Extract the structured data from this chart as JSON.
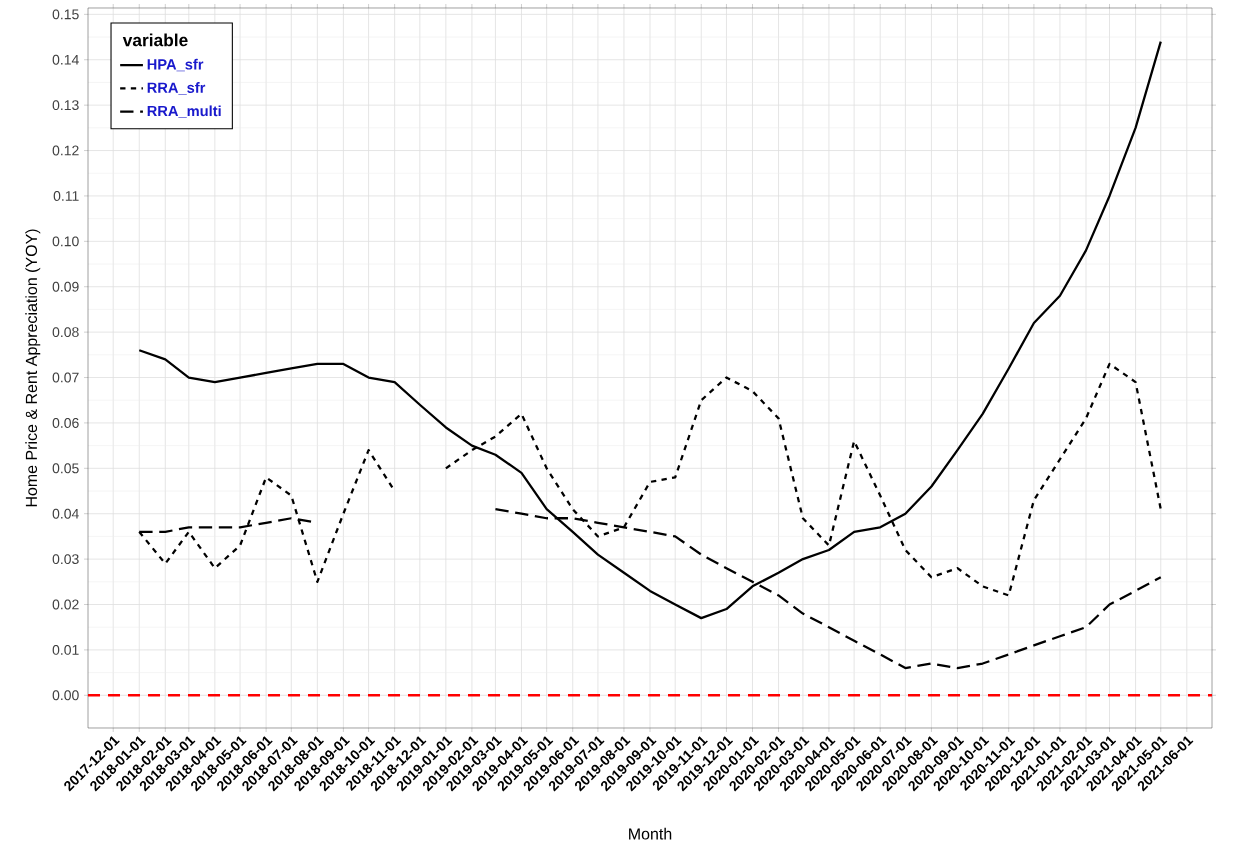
{
  "chart_data": {
    "type": "line",
    "xlabel": "Month",
    "ylabel": "Home Price & Rent Appreciation (YOY)",
    "legend_title": "variable",
    "legend": "top left",
    "grid": true,
    "x": [
      "2018-01-01",
      "2018-02-01",
      "2018-03-01",
      "2018-04-01",
      "2018-05-01",
      "2018-06-01",
      "2018-07-01",
      "2018-08-01",
      "2018-09-01",
      "2018-10-01",
      "2018-11-01",
      "2018-12-01",
      "2019-01-01",
      "2019-02-01",
      "2019-03-01",
      "2019-04-01",
      "2019-05-01",
      "2019-06-01",
      "2019-07-01",
      "2019-08-01",
      "2019-09-01",
      "2019-10-01",
      "2019-11-01",
      "2019-12-01",
      "2020-01-01",
      "2020-02-01",
      "2020-03-01",
      "2020-04-01",
      "2020-05-01",
      "2020-06-01",
      "2020-07-01",
      "2020-08-01",
      "2020-09-01",
      "2020-10-01",
      "2020-11-01",
      "2020-12-01",
      "2021-01-01",
      "2021-02-01",
      "2021-03-01",
      "2021-04-01",
      "2021-05-01"
    ],
    "series": [
      {
        "name": "HPA_sfr",
        "color": "#000000",
        "line_style": "solid",
        "values": [
          0.076,
          0.074,
          0.07,
          0.069,
          0.07,
          0.071,
          0.072,
          0.073,
          0.073,
          0.07,
          0.069,
          0.064,
          0.059,
          0.055,
          0.053,
          0.049,
          0.041,
          0.036,
          0.031,
          0.027,
          0.023,
          0.02,
          0.017,
          0.019,
          0.024,
          0.027,
          0.03,
          0.032,
          0.036,
          0.037,
          0.04,
          0.046,
          0.054,
          0.062,
          0.072,
          0.082,
          0.088,
          0.098,
          0.11,
          0.125,
          0.144
        ]
      },
      {
        "name": "RRA_sfr",
        "color": "#000000",
        "line_style": "dotted",
        "values": [
          0.036,
          0.029,
          0.036,
          0.028,
          0.033,
          0.048,
          0.044,
          0.025,
          0.04,
          0.054,
          0.045,
          null,
          0.05,
          0.054,
          0.057,
          0.062,
          0.05,
          0.041,
          0.035,
          0.037,
          0.047,
          0.048,
          0.065,
          0.07,
          0.067,
          0.061,
          0.039,
          0.033,
          0.056,
          0.044,
          0.032,
          0.026,
          0.028,
          0.024,
          0.022,
          0.043,
          0.052,
          0.061,
          0.073,
          0.069,
          0.041
        ]
      },
      {
        "name": "RRA_multi",
        "color": "#000000",
        "line_style": "dashed",
        "values": [
          0.036,
          0.036,
          0.037,
          0.037,
          0.037,
          0.038,
          0.039,
          0.038,
          null,
          null,
          null,
          null,
          null,
          null,
          0.041,
          0.04,
          0.039,
          0.039,
          0.038,
          0.037,
          0.036,
          0.035,
          0.031,
          0.028,
          0.025,
          0.022,
          0.018,
          0.015,
          0.012,
          0.009,
          0.006,
          0.007,
          0.006,
          0.007,
          0.009,
          0.011,
          0.013,
          0.015,
          0.02,
          0.023,
          0.026
        ]
      }
    ],
    "xlim": [
      "2017-11-01",
      "2021-07-01"
    ],
    "xticks": [
      "2017-12-01",
      "2018-01-01",
      "2018-02-01",
      "2018-03-01",
      "2018-04-01",
      "2018-05-01",
      "2018-06-01",
      "2018-07-01",
      "2018-08-01",
      "2018-09-01",
      "2018-10-01",
      "2018-11-01",
      "2018-12-01",
      "2019-01-01",
      "2019-02-01",
      "2019-03-01",
      "2019-04-01",
      "2019-05-01",
      "2019-06-01",
      "2019-07-01",
      "2019-08-01",
      "2019-09-01",
      "2019-10-01",
      "2019-11-01",
      "2019-12-01",
      "2020-01-01",
      "2020-02-01",
      "2020-03-01",
      "2020-04-01",
      "2020-05-01",
      "2020-06-01",
      "2020-07-01",
      "2020-08-01",
      "2020-09-01",
      "2020-10-01",
      "2020-11-01",
      "2020-12-01",
      "2021-01-01",
      "2021-02-01",
      "2021-03-01",
      "2021-04-01",
      "2021-05-01",
      "2021-06-01"
    ],
    "ylim": [
      -0.0072,
      0.1514
    ],
    "yticks": [
      {
        "value": 0,
        "label": "0.00"
      },
      {
        "value": 0.01,
        "label": "0.01"
      },
      {
        "value": 0.02,
        "label": "0.02"
      },
      {
        "value": 0.03,
        "label": "0.03"
      },
      {
        "value": 0.04,
        "label": "0.04"
      },
      {
        "value": 0.05,
        "label": "0.05"
      },
      {
        "value": 0.06,
        "label": "0.06"
      },
      {
        "value": 0.07,
        "label": "0.07"
      },
      {
        "value": 0.08,
        "label": "0.08"
      },
      {
        "value": 0.09,
        "label": "0.09"
      },
      {
        "value": 0.1,
        "label": "0.10"
      },
      {
        "value": 0.11,
        "label": "0.11"
      },
      {
        "value": 0.12,
        "label": "0.12"
      },
      {
        "value": 0.13,
        "label": "0.13"
      },
      {
        "value": 0.14,
        "label": "0.14"
      },
      {
        "value": 0.15,
        "label": "0.15"
      }
    ],
    "ref_lines": [
      {
        "axis": "y",
        "value": 0,
        "color": "#ff0000",
        "line_style": "dashed"
      }
    ]
  }
}
